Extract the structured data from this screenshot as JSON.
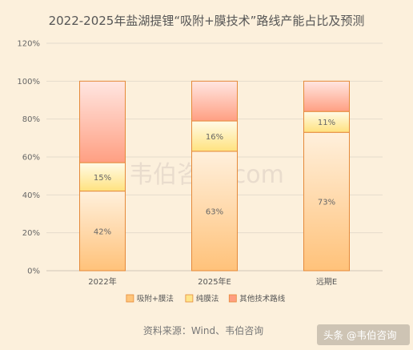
{
  "chart_data": {
    "type": "bar",
    "stacked": true,
    "title": "2022-2025年盐湖提锂“吸附+膜技术”路线产能占比及预测",
    "categories": [
      "2022年",
      "2025年E",
      "远期E"
    ],
    "series": [
      {
        "name": "吸附+膜法",
        "values": [
          42,
          63,
          73
        ],
        "color": "#ffc57a"
      },
      {
        "name": "纯膜法",
        "values": [
          15,
          16,
          11
        ],
        "color": "#ffe58a"
      },
      {
        "name": "其他技术路线",
        "values": [
          43,
          21,
          16
        ],
        "color": "#ff9e80"
      }
    ],
    "data_labels": [
      [
        "42%",
        "15%",
        ""
      ],
      [
        "63%",
        "16%",
        ""
      ],
      [
        "73%",
        "11%",
        ""
      ]
    ],
    "y_ticks": [
      "0%",
      "20%",
      "40%",
      "60%",
      "80%",
      "100%",
      "120%"
    ],
    "ylim": [
      0,
      120
    ],
    "grid": true,
    "legend_position": "bottom"
  },
  "source": "资料来源：Wind、韦伯咨询",
  "watermark": "韦伯咨询.com",
  "credit": "头条 @韦伯咨询"
}
